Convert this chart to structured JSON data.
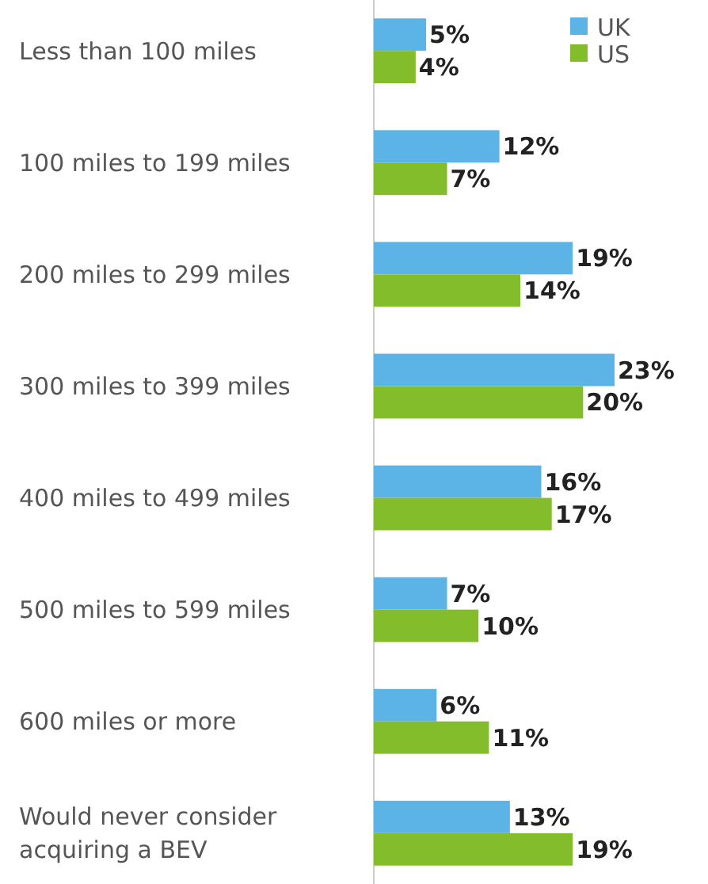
{
  "chart_data": {
    "type": "bar",
    "orientation": "horizontal",
    "categories": [
      "Less than 100 miles",
      "100 miles to 199 miles",
      "200 miles to 299 miles",
      "300 miles to 399 miles",
      "400 miles to 499 miles",
      "500 miles to 599 miles",
      "600 miles or more",
      "Would never consider acquiring a BEV"
    ],
    "series": [
      {
        "name": "UK",
        "color": "#5cb3e6",
        "values": [
          5,
          12,
          19,
          23,
          16,
          7,
          6,
          13
        ],
        "value_labels": [
          "5%",
          "12%",
          "19%",
          "23%",
          "16%",
          "7%",
          "6%",
          "13%"
        ]
      },
      {
        "name": "US",
        "color": "#84bd2b",
        "values": [
          4,
          7,
          14,
          20,
          17,
          10,
          11,
          19
        ],
        "value_labels": [
          "4%",
          "7%",
          "14%",
          "20%",
          "17%",
          "10%",
          "11%",
          "19%"
        ]
      }
    ],
    "legend": "top right",
    "grid": false
  }
}
